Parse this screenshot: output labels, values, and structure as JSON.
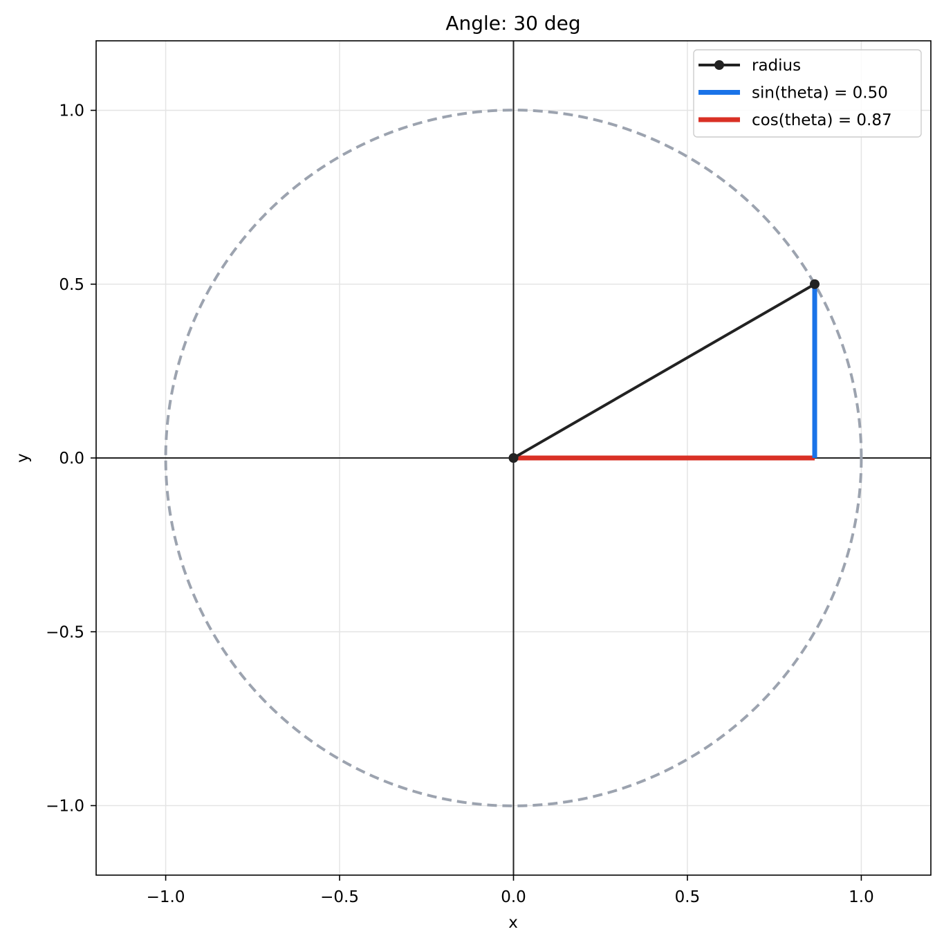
{
  "chart_data": {
    "type": "line",
    "title": "Angle: 30 deg",
    "xlabel": "x",
    "ylabel": "y",
    "xlim": [
      -1.2,
      1.2
    ],
    "ylim": [
      -1.2,
      1.2
    ],
    "x_ticks": [
      -1.0,
      -0.5,
      0.0,
      0.5,
      1.0
    ],
    "y_ticks": [
      -1.0,
      -0.5,
      0.0,
      0.5,
      1.0
    ],
    "x_tick_labels": [
      "−1.0",
      "−0.5",
      "0.0",
      "0.5",
      "1.0"
    ],
    "y_tick_labels": [
      "−1.0",
      "−0.5",
      "0.0",
      "0.5",
      "1.0"
    ],
    "grid": true,
    "legend_position": "top-right",
    "angle_deg": 30,
    "unit_circle": {
      "center": [
        0,
        0
      ],
      "radius": 1,
      "style": "dashed",
      "color": "#9ca3af"
    },
    "axes_lines": {
      "x": 0,
      "y": 0,
      "color": "#222222"
    },
    "series": [
      {
        "name": "radius",
        "x": [
          0.0,
          0.866
        ],
        "y": [
          0.0,
          0.5
        ],
        "color": "#222222",
        "marker": "circle"
      },
      {
        "name": "sin(theta) = 0.50",
        "x": [
          0.866,
          0.866
        ],
        "y": [
          0.0,
          0.5
        ],
        "color": "#1a73e8"
      },
      {
        "name": "cos(theta) = 0.87",
        "x": [
          0.0,
          0.866
        ],
        "y": [
          0.0,
          0.0
        ],
        "color": "#d93025"
      }
    ]
  }
}
